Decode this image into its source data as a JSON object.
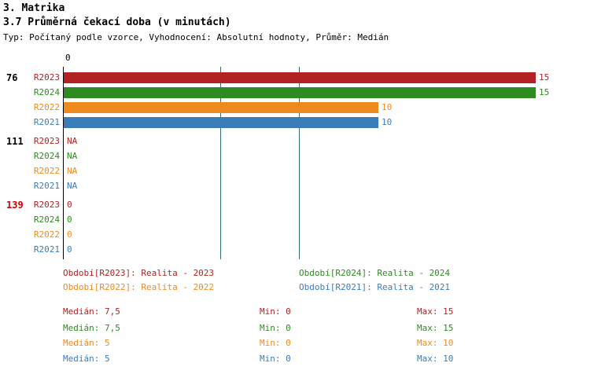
{
  "header": {
    "title": "3. Matrika",
    "subtitle": "3.7 Průměrná čekací doba (v minutách)",
    "info": "Typ: Počítaný podle vzorce, Vyhodnocení: Absolutní hodnoty, Průměr: Medián"
  },
  "colors": {
    "axis": "#000000",
    "median_line": "#2F6F6F",
    "group_label_default": "#000000",
    "group_label_alert": "#CC0000"
  },
  "chart_data": {
    "type": "bar",
    "orientation": "horizontal",
    "title": "3.7 Průměrná čekací doba (v minutách)",
    "xlabel": "",
    "ylabel": "",
    "xlim": [
      0,
      15
    ],
    "x_axis_zero_label": "0",
    "median_guides": [
      5,
      7.5
    ],
    "series": [
      {
        "name": "R2023",
        "color": "#B22222"
      },
      {
        "name": "R2024",
        "color": "#2E8B22"
      },
      {
        "name": "R2022",
        "color": "#EE8A1D"
      },
      {
        "name": "R2021",
        "color": "#3A7CB8"
      }
    ],
    "groups": [
      {
        "label": "76",
        "label_color": "#000000",
        "values": [
          15,
          15,
          10,
          10
        ],
        "display": [
          "15",
          "15",
          "10",
          "10"
        ]
      },
      {
        "label": "111",
        "label_color": "#000000",
        "values": [
          null,
          null,
          null,
          null
        ],
        "display": [
          "NA",
          "NA",
          "NA",
          "NA"
        ]
      },
      {
        "label": "139",
        "label_color": "#CC0000",
        "values": [
          0,
          0,
          0,
          0
        ],
        "display": [
          "0",
          "0",
          "0",
          "0"
        ]
      }
    ]
  },
  "legend": [
    {
      "text": "Období[R2023]: Realita - 2023",
      "series": 0
    },
    {
      "text": "Období[R2024]: Realita - 2024",
      "series": 1
    },
    {
      "text": "Období[R2022]: Realita - 2022",
      "series": 2
    },
    {
      "text": "Období[R2021]: Realita - 2021",
      "series": 3
    }
  ],
  "stats": [
    {
      "median": "Medián: 7,5",
      "min": "Min: 0",
      "max": "Max: 15",
      "series": 0
    },
    {
      "median": "Medián: 7,5",
      "min": "Min: 0",
      "max": "Max: 15",
      "series": 1
    },
    {
      "median": "Medián: 5",
      "min": "Min: 0",
      "max": "Max: 10",
      "series": 2
    },
    {
      "median": "Medián: 5",
      "min": "Min: 0",
      "max": "Max: 10",
      "series": 3
    }
  ]
}
